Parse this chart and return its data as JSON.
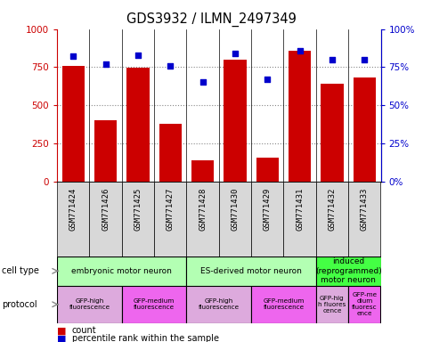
{
  "title": "GDS3932 / ILMN_2497349",
  "samples": [
    "GSM771424",
    "GSM771426",
    "GSM771425",
    "GSM771427",
    "GSM771428",
    "GSM771430",
    "GSM771429",
    "GSM771431",
    "GSM771432",
    "GSM771433"
  ],
  "counts": [
    760,
    400,
    745,
    380,
    140,
    800,
    155,
    860,
    640,
    680
  ],
  "percentiles": [
    82,
    77,
    83,
    76,
    65,
    84,
    67,
    86,
    80,
    80
  ],
  "bar_color": "#cc0000",
  "dot_color": "#0000cc",
  "ylim_left": [
    0,
    1000
  ],
  "ylim_right": [
    0,
    100
  ],
  "yticks_left": [
    0,
    250,
    500,
    750,
    1000
  ],
  "yticks_right": [
    0,
    25,
    50,
    75,
    100
  ],
  "cell_types": [
    {
      "label": "embryonic motor neuron",
      "start": 0,
      "end": 4,
      "color": "#b3ffb3"
    },
    {
      "label": "ES-derived motor neuron",
      "start": 4,
      "end": 8,
      "color": "#b3ffb3"
    },
    {
      "label": "induced\n(reprogrammed)\nmotor neuron",
      "start": 8,
      "end": 10,
      "color": "#44ff44"
    }
  ],
  "protocols": [
    {
      "label": "GFP-high\nfluorescence",
      "start": 0,
      "end": 2,
      "color": "#ddaadd"
    },
    {
      "label": "GFP-medium\nfluorescence",
      "start": 2,
      "end": 4,
      "color": "#ee66ee"
    },
    {
      "label": "GFP-high\nfluorescence",
      "start": 4,
      "end": 6,
      "color": "#ddaadd"
    },
    {
      "label": "GFP-medium\nfluorescence",
      "start": 6,
      "end": 8,
      "color": "#ee66ee"
    },
    {
      "label": "GFP-hig\nh fluores\ncence",
      "start": 8,
      "end": 9,
      "color": "#ddaadd"
    },
    {
      "label": "GFP-me\ndium\nfluoresc\nence",
      "start": 9,
      "end": 10,
      "color": "#ee66ee"
    }
  ],
  "legend_count_color": "#cc0000",
  "legend_percentile_color": "#0000cc",
  "sample_bg": "#d8d8d8",
  "plot_bg": "#ffffff",
  "grid_color": "#888888",
  "hgrid_ticks": [
    250,
    500,
    750
  ]
}
